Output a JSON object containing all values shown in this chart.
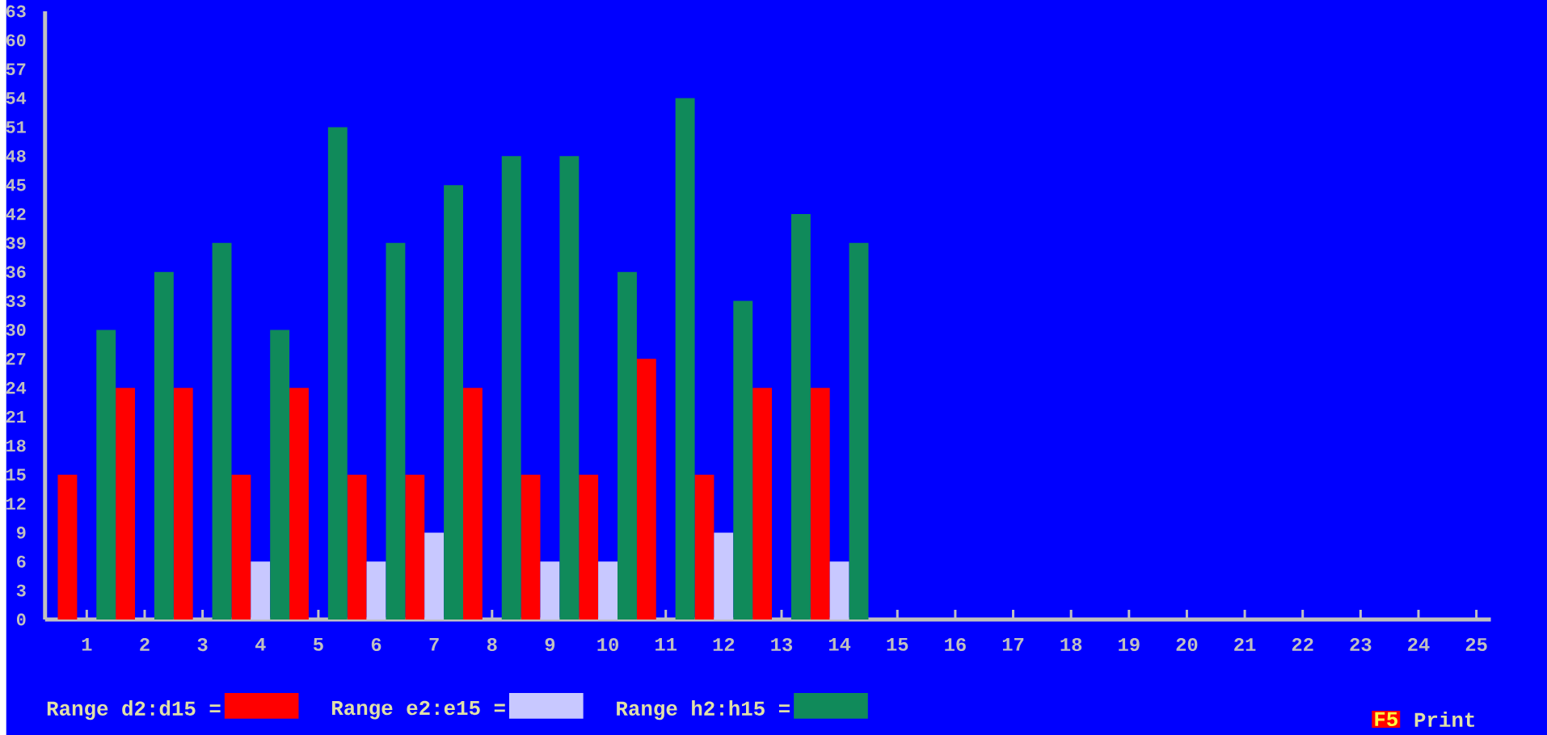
{
  "chart_data": {
    "type": "bar",
    "categories": [
      "1",
      "2",
      "3",
      "4",
      "5",
      "6",
      "7",
      "8",
      "9",
      "10",
      "11",
      "12",
      "13",
      "14",
      "15",
      "16",
      "17",
      "18",
      "19",
      "20",
      "21",
      "22",
      "23",
      "24",
      "25"
    ],
    "series": [
      {
        "name": "Range d2:d15 =",
        "color": "#ff0000",
        "values": [
          15,
          24,
          24,
          15,
          24,
          15,
          15,
          24,
          15,
          15,
          27,
          15,
          24,
          24,
          null,
          null,
          null,
          null,
          null,
          null,
          null,
          null,
          null,
          null,
          null
        ]
      },
      {
        "name": "Range e2:e15 =",
        "color": "#c8c8ff",
        "values": [
          null,
          null,
          null,
          6,
          null,
          6,
          9,
          null,
          6,
          6,
          null,
          9,
          null,
          6,
          null,
          null,
          null,
          null,
          null,
          null,
          null,
          null,
          null,
          null,
          null
        ]
      },
      {
        "name": "Range h2:h15 =",
        "color": "#108a5a",
        "values": [
          30,
          36,
          39,
          30,
          51,
          39,
          45,
          48,
          48,
          36,
          54,
          33,
          42,
          39,
          null,
          null,
          null,
          null,
          null,
          null,
          null,
          null,
          null,
          null,
          null
        ]
      }
    ],
    "ylim": [
      0,
      63
    ],
    "yticks": [
      0,
      3,
      6,
      9,
      12,
      15,
      18,
      21,
      24,
      27,
      30,
      33,
      36,
      39,
      42,
      45,
      48,
      51,
      54,
      57,
      60,
      63
    ],
    "legend": "bottom",
    "annotations": [
      "F5",
      "Print"
    ]
  }
}
